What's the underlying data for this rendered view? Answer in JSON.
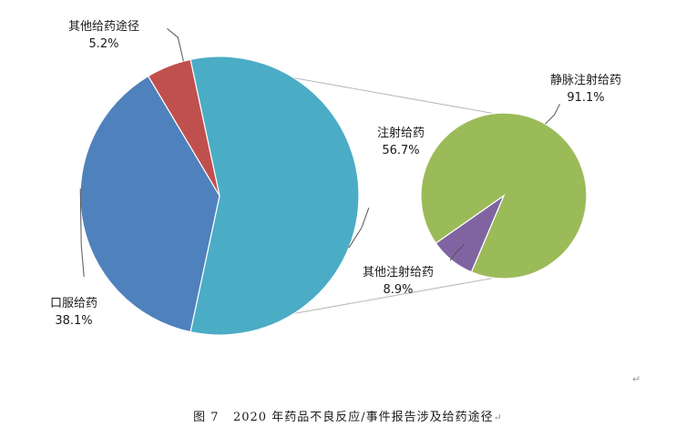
{
  "chart_data": {
    "type": "pie",
    "subtype": "pie-of-pie",
    "main_pie": {
      "slices": [
        {
          "label": "注射给药",
          "value": 56.7,
          "display": "56.7%",
          "color": "#4BACC6"
        },
        {
          "label": "口服给药",
          "value": 38.1,
          "display": "38.1%",
          "color": "#4F81BD"
        },
        {
          "label": "其他给药途径",
          "value": 5.2,
          "display": "5.2%",
          "color": "#C0504D"
        }
      ]
    },
    "secondary_pie": {
      "parent": "注射给药",
      "slices": [
        {
          "label": "静脉注射给药",
          "value": 91.1,
          "display": "91.1%",
          "color": "#9BBB59"
        },
        {
          "label": "其他注射给药",
          "value": 8.9,
          "display": "8.9%",
          "color": "#8064A2"
        }
      ]
    },
    "legend": "none",
    "caption": {
      "prefix": "图 7",
      "text": "2020 年药品不良反应/事件报告涉及给药途径",
      "mark": "↵"
    },
    "stray_mark": "↵"
  }
}
